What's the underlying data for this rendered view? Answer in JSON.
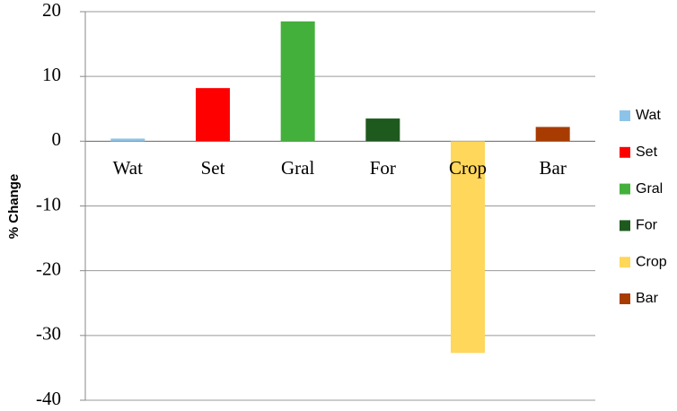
{
  "chart_data": {
    "type": "bar",
    "y_label": "% Change",
    "categories": [
      "Wat",
      "Set",
      "Gral",
      "For",
      "Crop",
      "Bar"
    ],
    "values": [
      0.4,
      8.2,
      18.5,
      3.5,
      -32.7,
      2.2
    ],
    "colors": [
      "#8dc3e8",
      "#ff0000",
      "#44b03c",
      "#1e5a1e",
      "#ffd75a",
      "#a83c00"
    ],
    "ylim": [
      -40,
      20
    ],
    "yticks": [
      -40,
      -30,
      -20,
      -10,
      0,
      10,
      20
    ],
    "grid": true,
    "legend": "right"
  }
}
